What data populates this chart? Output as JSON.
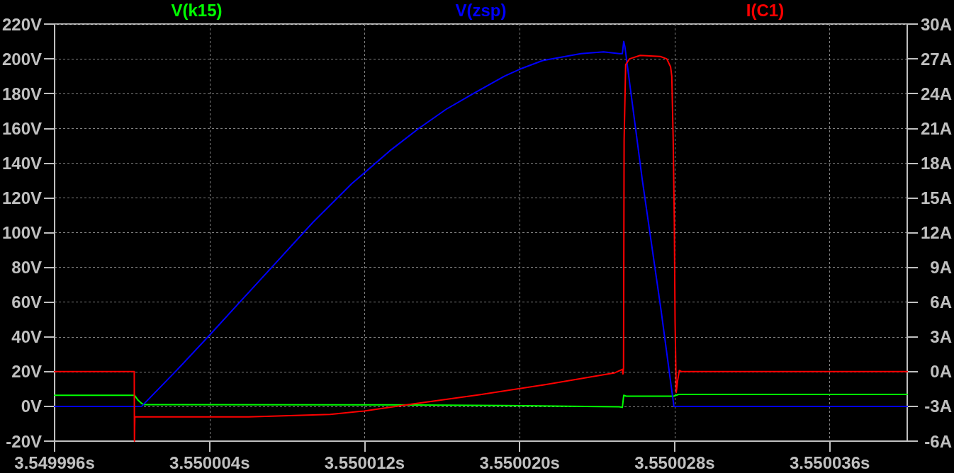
{
  "chart_data": {
    "type": "line",
    "series": [
      {
        "name": "V(k15)",
        "color": "#00ff00",
        "x": [
          3.549996,
          3.55000012,
          3.55000031,
          3.55000049,
          3.55000061,
          3.55001338,
          3.55001925,
          3.55002254,
          3.55002514,
          3.5500253,
          3.55002537,
          3.5500255,
          3.55002795,
          3.5500282,
          3.55004
        ],
        "values": [
          6.4,
          6.4,
          3.5,
          1.7,
          1.0,
          0.9,
          0.5,
          0.1,
          -0.2,
          -0.6,
          6.4,
          5.9,
          5.9,
          6.9,
          6.9
        ]
      },
      {
        "name": "V(zsp)",
        "color": "#0000ff",
        "x": [
          3.549996,
          3.55000049,
          3.55000232,
          3.550004,
          3.55000539,
          3.55000737,
          3.55000934,
          3.55001132,
          3.55001329,
          3.5500148,
          3.55001621,
          3.55001761,
          3.55001921,
          3.55002,
          3.55002119,
          3.55002316,
          3.55002433,
          3.55002514,
          3.5500253,
          3.55002537,
          3.55002543,
          3.55002632,
          3.5500273,
          3.55002796,
          3.55004
        ],
        "values": [
          0,
          0,
          21,
          41,
          58,
          82,
          106,
          128,
          147,
          160,
          171,
          180,
          190,
          194,
          199,
          203,
          204,
          203,
          203,
          210,
          207,
          131,
          55,
          0,
          0
        ]
      },
      {
        "name": "I(C1)",
        "color": "#ff0000",
        "axis": "y2",
        "x": [
          3.549996,
          3.55000011,
          3.55000012,
          3.55000014,
          3.550006,
          3.55001022,
          3.55001197,
          3.55001442,
          3.55001792,
          3.55002142,
          3.55002492,
          3.5500253,
          3.55002533,
          3.55002536,
          3.55002539,
          3.55002547,
          3.55002567,
          3.55002622,
          3.55002726,
          3.55002759,
          3.55002779,
          3.55002785,
          3.55002792,
          3.55002798,
          3.55002802,
          3.55002808,
          3.55002815,
          3.55002824,
          3.55002836,
          3.55004
        ],
        "values": [
          0,
          0,
          -6,
          -3.9,
          -3.9,
          -3.7,
          -3.4,
          -2.8,
          -2.0,
          -1.1,
          -0.1,
          0.2,
          -0.2,
          0.3,
          20,
          26.5,
          27.0,
          27.3,
          27.2,
          27.0,
          26.3,
          25.5,
          20.2,
          13.0,
          4.3,
          -1.8,
          -0.8,
          0.1,
          0,
          0
        ]
      }
    ],
    "xlim": [
      3.549996,
      3.55004
    ],
    "xticks": [
      {
        "value": 3.549996,
        "label": "3.549996s"
      },
      {
        "value": 3.550004,
        "label": "3.550004s"
      },
      {
        "value": 3.550012,
        "label": "3.550012s"
      },
      {
        "value": 3.55002,
        "label": "3.550020s"
      },
      {
        "value": 3.550028,
        "label": "3.550028s"
      },
      {
        "value": 3.550036,
        "label": "3.550036s"
      }
    ],
    "ylim": [
      -20,
      220
    ],
    "yticks": [
      {
        "value": -20,
        "label": "-20V"
      },
      {
        "value": 0,
        "label": "0V"
      },
      {
        "value": 20,
        "label": "20V"
      },
      {
        "value": 40,
        "label": "40V"
      },
      {
        "value": 60,
        "label": "60V"
      },
      {
        "value": 80,
        "label": "80V"
      },
      {
        "value": 100,
        "label": "100V"
      },
      {
        "value": 120,
        "label": "120V"
      },
      {
        "value": 140,
        "label": "140V"
      },
      {
        "value": 160,
        "label": "160V"
      },
      {
        "value": 180,
        "label": "180V"
      },
      {
        "value": 200,
        "label": "200V"
      },
      {
        "value": 220,
        "label": "220V"
      }
    ],
    "y2lim": [
      -6,
      30
    ],
    "y2ticks": [
      {
        "value": -6,
        "label": "-6A"
      },
      {
        "value": -3,
        "label": "-3A"
      },
      {
        "value": 0,
        "label": "0A"
      },
      {
        "value": 3,
        "label": "3A"
      },
      {
        "value": 6,
        "label": "6A"
      },
      {
        "value": 9,
        "label": "9A"
      },
      {
        "value": 12,
        "label": "12A"
      },
      {
        "value": 15,
        "label": "15A"
      },
      {
        "value": 18,
        "label": "18A"
      },
      {
        "value": 21,
        "label": "21A"
      },
      {
        "value": 24,
        "label": "24A"
      },
      {
        "value": 27,
        "label": "27A"
      },
      {
        "value": 30,
        "label": "30A"
      }
    ],
    "grid": true,
    "legend": "top",
    "line_style": "solid"
  }
}
